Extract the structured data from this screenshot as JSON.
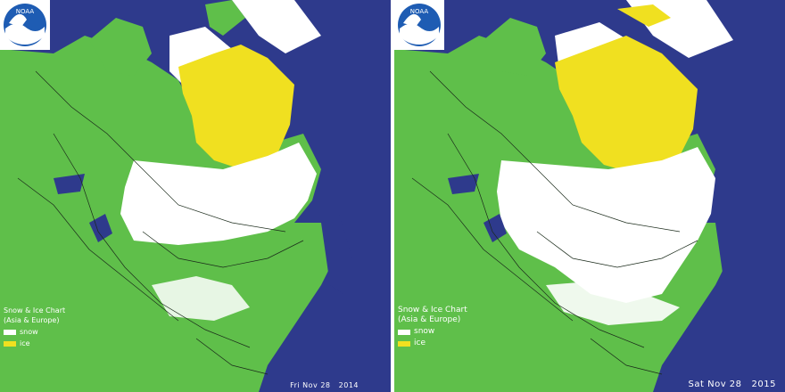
{
  "colors": {
    "water": "#2e3a8c",
    "land": "#5fbf4a",
    "snow": "#ffffff",
    "ice": "#f0e020",
    "border": "#1a2a1a"
  },
  "logo": {
    "text": "NOAA"
  },
  "panels": [
    {
      "legend_title": "Snow & Ice Chart",
      "legend_subtitle": "(Asia & Europe)",
      "snow_label": "snow",
      "ice_label": "ice",
      "date": "Fri Nov 28   2014"
    },
    {
      "legend_title": "Snow & Ice Chart",
      "legend_subtitle": "(Asia & Europe)",
      "snow_label": "snow",
      "ice_label": "ice",
      "date": "Sat Nov 28   2015"
    }
  ]
}
